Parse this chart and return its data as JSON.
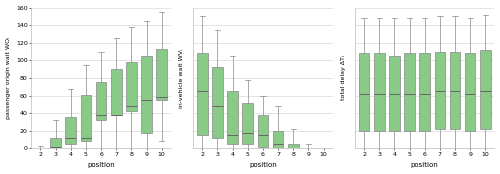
{
  "positions": [
    2,
    3,
    4,
    5,
    6,
    7,
    8,
    9,
    10
  ],
  "box_color": "#8ACA87",
  "box_edge_color": "#888888",
  "median_color": "#666666",
  "whisker_color": "#888888",
  "background_color": "#ffffff",
  "grid_color": "#d0d0d0",
  "plot1": {
    "ylabel": "passenger origin wait WOᵢ",
    "xlabel": "position",
    "ylim": [
      0,
      160
    ],
    "yticks": [
      0,
      20,
      40,
      60,
      80,
      100,
      120,
      140,
      160
    ],
    "show_yticks": true,
    "boxes": [
      {
        "q1": 0,
        "q2": 0,
        "q3": 1,
        "whislo": 0,
        "whishi": 3
      },
      {
        "q1": 0,
        "q2": 2,
        "q3": 12,
        "whislo": 0,
        "whishi": 32
      },
      {
        "q1": 5,
        "q2": 12,
        "q3": 36,
        "whislo": 0,
        "whishi": 68
      },
      {
        "q1": 8,
        "q2": 12,
        "q3": 61,
        "whislo": 0,
        "whishi": 95
      },
      {
        "q1": 32,
        "q2": 38,
        "q3": 75,
        "whislo": 0,
        "whishi": 110
      },
      {
        "q1": 38,
        "q2": 38,
        "q3": 90,
        "whislo": 0,
        "whishi": 125
      },
      {
        "q1": 42,
        "q2": 48,
        "q3": 98,
        "whislo": 0,
        "whishi": 138
      },
      {
        "q1": 18,
        "q2": 55,
        "q3": 105,
        "whislo": 0,
        "whishi": 145
      },
      {
        "q1": 55,
        "q2": 58,
        "q3": 113,
        "whislo": 8,
        "whishi": 155
      }
    ]
  },
  "plot2": {
    "ylabel": "in-vehicle wait WVᵢ",
    "xlabel": "position",
    "ylim": [
      0,
      160
    ],
    "yticks": [
      0,
      20,
      40,
      60,
      80,
      100,
      120,
      140,
      160
    ],
    "show_yticks": false,
    "boxes": [
      {
        "q1": 15,
        "q2": 65,
        "q3": 108,
        "whislo": 0,
        "whishi": 150
      },
      {
        "q1": 12,
        "q2": 48,
        "q3": 92,
        "whislo": 0,
        "whishi": 135
      },
      {
        "q1": 5,
        "q2": 15,
        "q3": 65,
        "whislo": 0,
        "whishi": 105
      },
      {
        "q1": 5,
        "q2": 18,
        "q3": 52,
        "whislo": 0,
        "whishi": 78
      },
      {
        "q1": 2,
        "q2": 15,
        "q3": 38,
        "whislo": 0,
        "whishi": 60
      },
      {
        "q1": 0,
        "q2": 5,
        "q3": 20,
        "whislo": 0,
        "whishi": 48
      },
      {
        "q1": 0,
        "q2": 0,
        "q3": 5,
        "whislo": 0,
        "whishi": 22
      },
      {
        "q1": 0,
        "q2": 0,
        "q3": 0,
        "whislo": 0,
        "whishi": 5
      },
      {
        "q1": 0,
        "q2": 0,
        "q3": 0,
        "whislo": 0,
        "whishi": 1
      }
    ]
  },
  "plot3": {
    "ylabel": "total delay ΔTᵢ",
    "xlabel": "position",
    "ylim": [
      0,
      160
    ],
    "yticks": [
      0,
      20,
      40,
      60,
      80,
      100,
      120,
      140,
      160
    ],
    "show_yticks": false,
    "boxes": [
      {
        "q1": 20,
        "q2": 62,
        "q3": 108,
        "whislo": 0,
        "whishi": 148
      },
      {
        "q1": 20,
        "q2": 62,
        "q3": 108,
        "whislo": 0,
        "whishi": 148
      },
      {
        "q1": 20,
        "q2": 62,
        "q3": 105,
        "whislo": 0,
        "whishi": 148
      },
      {
        "q1": 20,
        "q2": 62,
        "q3": 108,
        "whislo": 0,
        "whishi": 148
      },
      {
        "q1": 20,
        "q2": 62,
        "q3": 108,
        "whislo": 0,
        "whishi": 148
      },
      {
        "q1": 22,
        "q2": 65,
        "q3": 110,
        "whislo": 0,
        "whishi": 150
      },
      {
        "q1": 22,
        "q2": 65,
        "q3": 110,
        "whislo": 0,
        "whishi": 150
      },
      {
        "q1": 20,
        "q2": 62,
        "q3": 108,
        "whislo": 0,
        "whishi": 148
      },
      {
        "q1": 22,
        "q2": 65,
        "q3": 112,
        "whislo": 0,
        "whishi": 152
      }
    ]
  }
}
